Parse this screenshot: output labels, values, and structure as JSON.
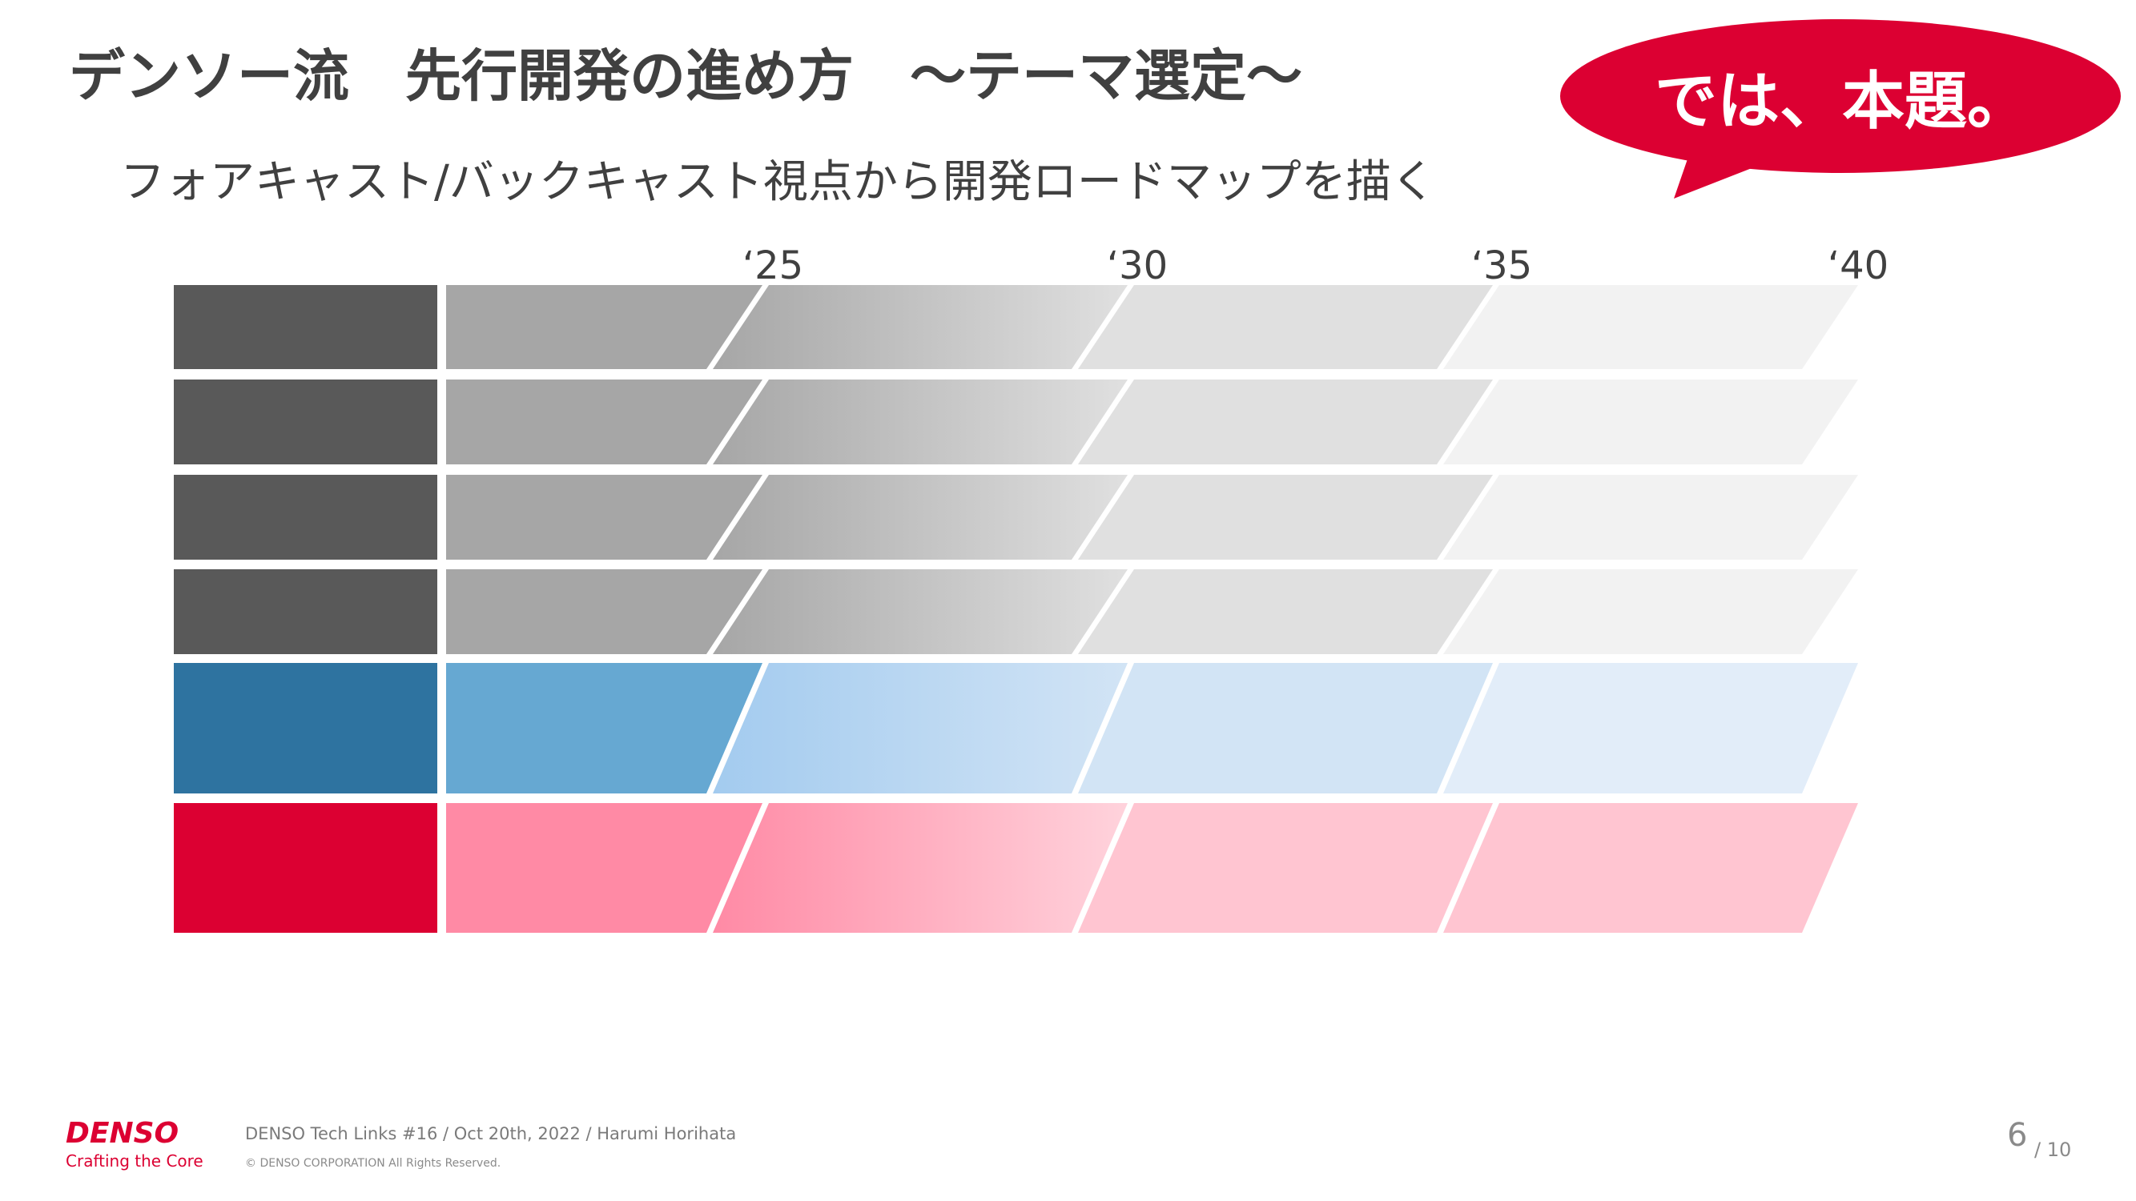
{
  "slide": {
    "title": "デンソー流　先行開発の進め方　～テーマ選定～",
    "subtitle": "フォアキャスト/バックキャスト視点から開発ロードマップを描く",
    "callout": "では、本題。"
  },
  "timeline": {
    "years": [
      "‘25",
      "‘30",
      "‘35",
      "‘40"
    ]
  },
  "colors": {
    "accent_red": "#dc0032",
    "label_gray": "#595959",
    "label_blue": "#2e73a0",
    "label_red": "#dc0032"
  },
  "footer": {
    "logo": "DENSO",
    "tagline": "Crafting the Core",
    "event": "DENSO Tech Links #16 / Oct 20th, 2022 / Harumi Horihata",
    "copyright": "© DENSO CORPORATION All Rights Reserved.",
    "page": "6",
    "total": "/ 10"
  }
}
